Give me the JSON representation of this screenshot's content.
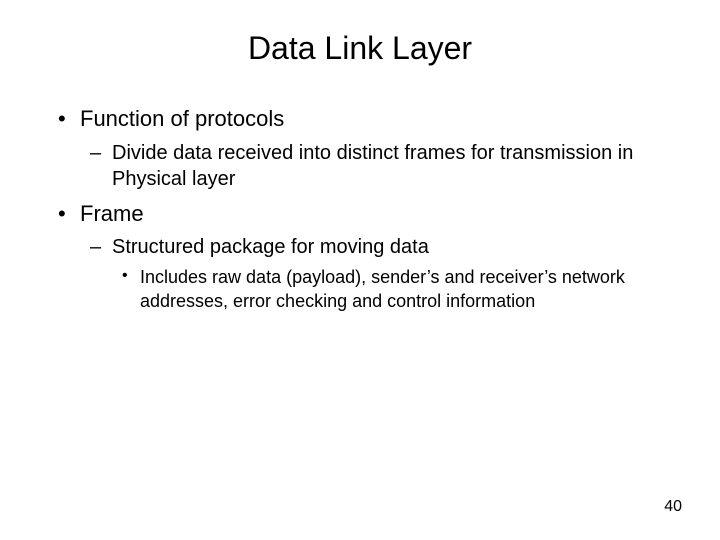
{
  "slide": {
    "title": "Data Link Layer",
    "pageNumber": "40",
    "background_color": "#ffffff",
    "text_color": "#000000",
    "title_fontsize": 32,
    "body_fontsize": 22,
    "bullets": {
      "level1": [
        {
          "text": "Function of protocols",
          "children": [
            {
              "text": "Divide data received into distinct frames for transmission in Physical layer",
              "children": []
            }
          ]
        },
        {
          "text": "Frame",
          "children": [
            {
              "text": "Structured package for moving data",
              "children": [
                {
                  "text": "Includes raw data (payload), sender’s and receiver’s network addresses, error checking and control information"
                }
              ]
            }
          ]
        }
      ]
    }
  }
}
